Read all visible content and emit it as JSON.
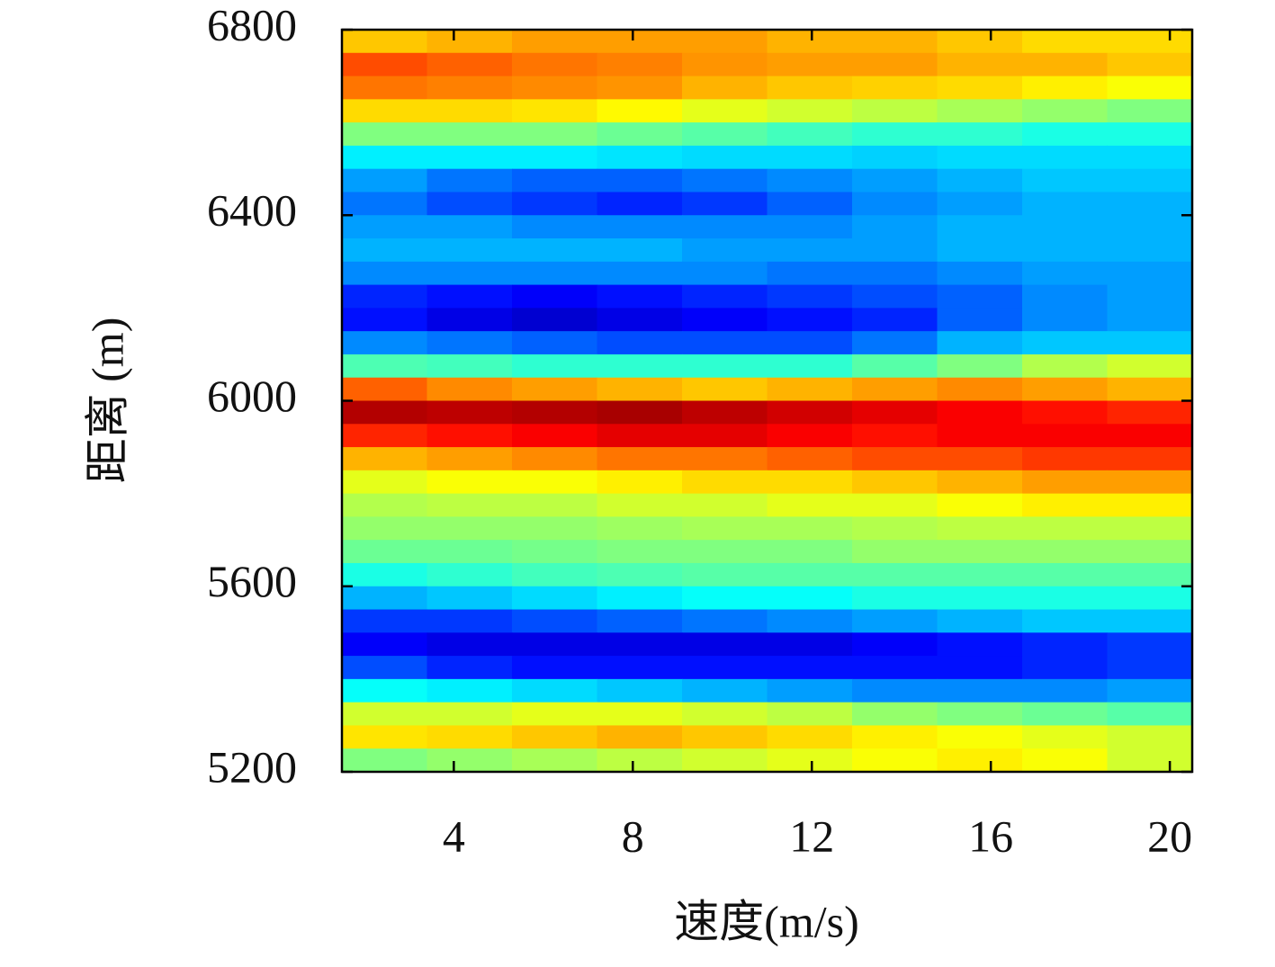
{
  "chart_data": {
    "type": "heatmap",
    "colormap": "jet",
    "clim": [
      0,
      100
    ],
    "xlabel": "速度(m/s)",
    "ylabel": "距离 (m)",
    "xlim": [
      1.5,
      20.5
    ],
    "ylim": [
      5200,
      6800
    ],
    "xticks": [
      4,
      8,
      12,
      16,
      20
    ],
    "yticks": [
      5200,
      5600,
      6000,
      6400,
      6800
    ],
    "x": [
      2.45,
      4.35,
      6.25,
      8.15,
      10.05,
      11.95,
      13.85,
      15.75,
      17.65,
      19.55
    ],
    "y": [
      6775,
      6725,
      6675,
      6625,
      6575,
      6525,
      6475,
      6425,
      6375,
      6325,
      6275,
      6225,
      6175,
      6125,
      6075,
      6025,
      5975,
      5925,
      5875,
      5825,
      5775,
      5725,
      5675,
      5625,
      5575,
      5525,
      5475,
      5425,
      5375,
      5325,
      5275,
      5225
    ],
    "z": [
      [
        68,
        70,
        72,
        72,
        72,
        70,
        70,
        68,
        66,
        66
      ],
      [
        80,
        78,
        76,
        75,
        73,
        72,
        72,
        70,
        70,
        68
      ],
      [
        76,
        75,
        74,
        73,
        70,
        68,
        67,
        66,
        64,
        62
      ],
      [
        66,
        66,
        65,
        63,
        60,
        58,
        56,
        54,
        52,
        50
      ],
      [
        50,
        50,
        50,
        48,
        46,
        44,
        42,
        42,
        40,
        40
      ],
      [
        36,
        36,
        36,
        35,
        34,
        34,
        33,
        34,
        34,
        34
      ],
      [
        28,
        24,
        22,
        22,
        24,
        26,
        28,
        30,
        32,
        32
      ],
      [
        24,
        20,
        18,
        16,
        18,
        22,
        26,
        28,
        30,
        30
      ],
      [
        28,
        28,
        26,
        26,
        26,
        26,
        28,
        30,
        30,
        30
      ],
      [
        30,
        30,
        30,
        30,
        28,
        28,
        28,
        30,
        30,
        30
      ],
      [
        26,
        26,
        26,
        26,
        26,
        24,
        24,
        26,
        28,
        28
      ],
      [
        16,
        14,
        12,
        14,
        16,
        18,
        20,
        22,
        26,
        28
      ],
      [
        14,
        10,
        8,
        10,
        12,
        14,
        16,
        22,
        26,
        28
      ],
      [
        26,
        24,
        22,
        20,
        20,
        20,
        24,
        30,
        32,
        32
      ],
      [
        45,
        44,
        42,
        42,
        42,
        42,
        46,
        50,
        55,
        58
      ],
      [
        78,
        74,
        72,
        70,
        68,
        70,
        72,
        74,
        72,
        70
      ],
      [
        95,
        94,
        95,
        96,
        94,
        92,
        90,
        88,
        86,
        84
      ],
      [
        84,
        86,
        88,
        90,
        90,
        88,
        86,
        88,
        88,
        88
      ],
      [
        70,
        72,
        74,
        76,
        76,
        78,
        80,
        80,
        82,
        82
      ],
      [
        60,
        62,
        62,
        64,
        66,
        66,
        68,
        70,
        72,
        72
      ],
      [
        55,
        56,
        56,
        58,
        58,
        60,
        60,
        62,
        64,
        64
      ],
      [
        52,
        52,
        52,
        53,
        54,
        54,
        55,
        56,
        56,
        56
      ],
      [
        48,
        48,
        49,
        50,
        50,
        50,
        52,
        52,
        52,
        52
      ],
      [
        40,
        42,
        44,
        45,
        46,
        46,
        46,
        46,
        46,
        46
      ],
      [
        30,
        32,
        34,
        36,
        38,
        38,
        40,
        40,
        40,
        40
      ],
      [
        18,
        18,
        20,
        22,
        24,
        26,
        28,
        30,
        32,
        32
      ],
      [
        12,
        10,
        10,
        10,
        10,
        10,
        12,
        14,
        16,
        18
      ],
      [
        20,
        16,
        14,
        14,
        14,
        14,
        14,
        14,
        16,
        18
      ],
      [
        38,
        36,
        34,
        32,
        30,
        28,
        26,
        26,
        26,
        28
      ],
      [
        58,
        58,
        60,
        60,
        58,
        56,
        52,
        50,
        48,
        46
      ],
      [
        65,
        66,
        68,
        70,
        68,
        66,
        64,
        62,
        60,
        58
      ],
      [
        50,
        52,
        54,
        56,
        58,
        60,
        62,
        64,
        62,
        58
      ]
    ]
  }
}
